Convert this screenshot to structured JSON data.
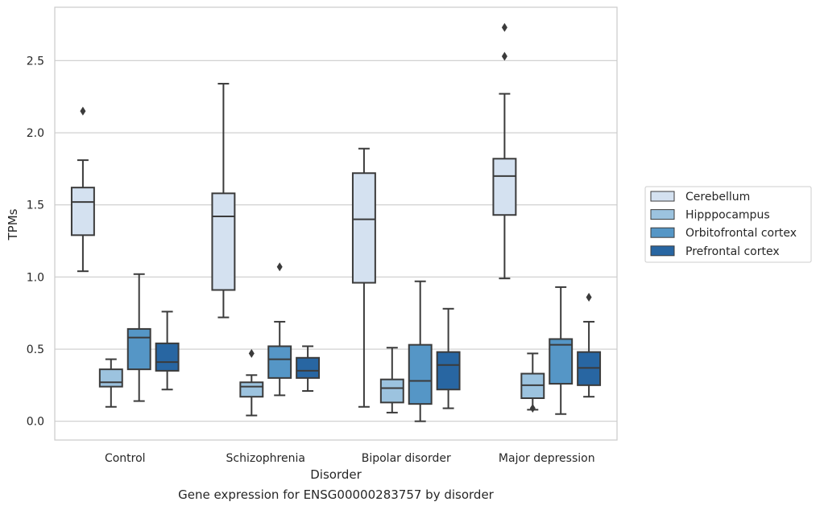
{
  "caption": "Gene expression for ENSG00000283757 by disorder",
  "chart_data": {
    "type": "box",
    "xlabel": "Disorder",
    "ylabel": "TPMs",
    "ylim": [
      -0.13,
      2.87
    ],
    "yticks": [
      0.0,
      0.5,
      1.0,
      1.5,
      2.0,
      2.5
    ],
    "ytick_labels": [
      "0.0",
      "0.5",
      "1.0",
      "1.5",
      "2.0",
      "2.5"
    ],
    "grid": true,
    "legend_position": "right",
    "categories": [
      "Control",
      "Schizophrenia",
      "Bipolar disorder",
      "Major depression"
    ],
    "series": [
      {
        "name": "Cerebellum",
        "color": "#d4e1f0",
        "boxes": [
          {
            "whislo": 1.04,
            "q1": 1.29,
            "med": 1.52,
            "q3": 1.62,
            "whishi": 1.81,
            "fliers": [
              2.15
            ]
          },
          {
            "whislo": 0.72,
            "q1": 0.91,
            "med": 1.42,
            "q3": 1.58,
            "whishi": 2.34,
            "fliers": []
          },
          {
            "whislo": 0.1,
            "q1": 0.96,
            "med": 1.4,
            "q3": 1.72,
            "whishi": 1.89,
            "fliers": []
          },
          {
            "whislo": 0.99,
            "q1": 1.43,
            "med": 1.7,
            "q3": 1.82,
            "whishi": 2.27,
            "fliers": [
              2.53,
              2.73
            ]
          }
        ]
      },
      {
        "name": "Hipppocampus",
        "color": "#9cc3df",
        "boxes": [
          {
            "whislo": 0.1,
            "q1": 0.24,
            "med": 0.27,
            "q3": 0.36,
            "whishi": 0.43,
            "fliers": []
          },
          {
            "whislo": 0.04,
            "q1": 0.17,
            "med": 0.24,
            "q3": 0.27,
            "whishi": 0.32,
            "fliers": [
              0.47
            ]
          },
          {
            "whislo": 0.06,
            "q1": 0.13,
            "med": 0.23,
            "q3": 0.29,
            "whishi": 0.51,
            "fliers": []
          },
          {
            "whislo": 0.08,
            "q1": 0.16,
            "med": 0.25,
            "q3": 0.33,
            "whishi": 0.47,
            "fliers": [
              0.09
            ]
          }
        ]
      },
      {
        "name": "Orbitofrontal cortex",
        "color": "#5596c6",
        "boxes": [
          {
            "whislo": 0.14,
            "q1": 0.36,
            "med": 0.58,
            "q3": 0.64,
            "whishi": 1.02,
            "fliers": []
          },
          {
            "whislo": 0.18,
            "q1": 0.3,
            "med": 0.43,
            "q3": 0.52,
            "whishi": 0.69,
            "fliers": [
              1.07
            ]
          },
          {
            "whislo": 0.0,
            "q1": 0.12,
            "med": 0.28,
            "q3": 0.53,
            "whishi": 0.97,
            "fliers": []
          },
          {
            "whislo": 0.05,
            "q1": 0.26,
            "med": 0.53,
            "q3": 0.57,
            "whishi": 0.93,
            "fliers": []
          }
        ]
      },
      {
        "name": "Prefrontal cortex",
        "color": "#2866a2",
        "boxes": [
          {
            "whislo": 0.22,
            "q1": 0.35,
            "med": 0.41,
            "q3": 0.54,
            "whishi": 0.76,
            "fliers": []
          },
          {
            "whislo": 0.21,
            "q1": 0.3,
            "med": 0.35,
            "q3": 0.44,
            "whishi": 0.52,
            "fliers": []
          },
          {
            "whislo": 0.09,
            "q1": 0.22,
            "med": 0.39,
            "q3": 0.48,
            "whishi": 0.78,
            "fliers": []
          },
          {
            "whislo": 0.17,
            "q1": 0.25,
            "med": 0.37,
            "q3": 0.48,
            "whishi": 0.69,
            "fliers": [
              0.86
            ]
          }
        ]
      }
    ]
  }
}
